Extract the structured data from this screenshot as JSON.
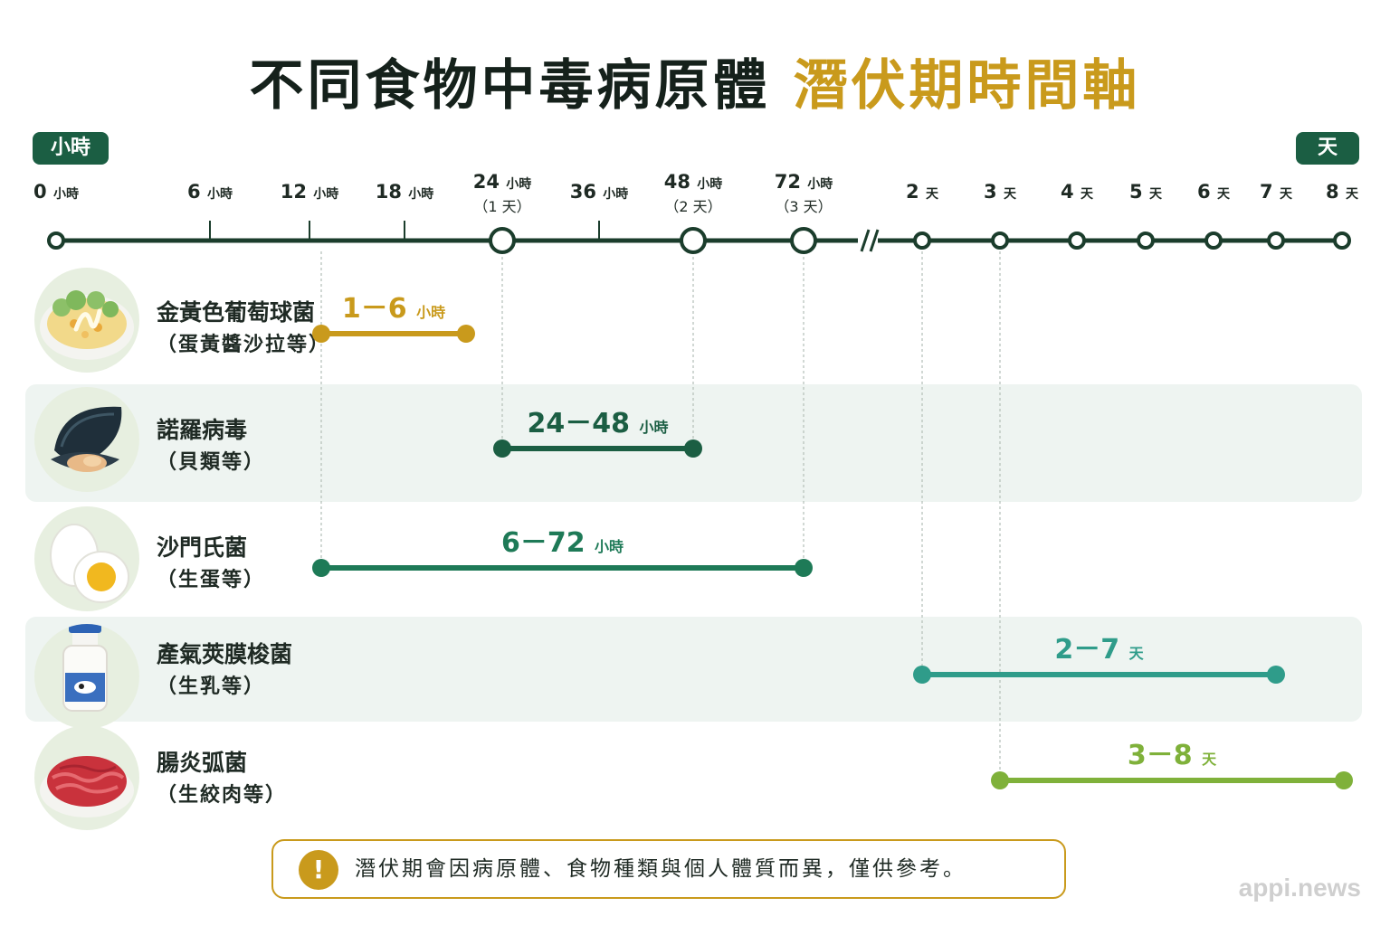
{
  "title": {
    "part1": "不同食物中毒病原體",
    "part2": "潛伏期時間軸"
  },
  "unit_tags": {
    "hours": "小時",
    "days": "天"
  },
  "axis": {
    "ticks": [
      {
        "num": "0",
        "unit": "小時"
      },
      {
        "num": "6",
        "unit": "小時"
      },
      {
        "num": "12",
        "unit": "小時"
      },
      {
        "num": "18",
        "unit": "小時"
      },
      {
        "num": "24",
        "unit": "小時",
        "sub": "（1 天）",
        "major": true
      },
      {
        "num": "36",
        "unit": "小時"
      },
      {
        "num": "48",
        "unit": "小時",
        "sub": "（2 天）",
        "major": true
      },
      {
        "num": "72",
        "unit": "小時",
        "sub": "（3 天）",
        "major": true
      },
      {
        "num": "2",
        "unit": "天",
        "node": true
      },
      {
        "num": "3",
        "unit": "天",
        "node": true
      },
      {
        "num": "4",
        "unit": "天",
        "node": true
      },
      {
        "num": "5",
        "unit": "天",
        "node": true
      },
      {
        "num": "6",
        "unit": "天",
        "node": true
      },
      {
        "num": "7",
        "unit": "天",
        "node": true
      },
      {
        "num": "8",
        "unit": "天",
        "node": true
      }
    ],
    "axis_color": "#1b3d2c"
  },
  "pathogens": [
    {
      "name": "金黃色葡萄球菌",
      "source": "（蛋黃醬沙拉等）",
      "range": "1－6",
      "unit": "小時",
      "start_tick": 1,
      "end_tick": 6,
      "color": "#c99a1c",
      "food_icon": "mayo-salad-icon"
    },
    {
      "name": "諾羅病毒",
      "source": "（貝類等）",
      "range": "24－48",
      "unit": "小時",
      "start_tick": 24,
      "end_tick": 48,
      "color": "#1b5e43",
      "food_icon": "mussel-icon"
    },
    {
      "name": "沙門氏菌",
      "source": "（生蛋等）",
      "range": "6－72",
      "unit": "小時",
      "start_tick": 6,
      "end_tick": 72,
      "color": "#1e7a57",
      "food_icon": "egg-icon"
    },
    {
      "name": "產氣莢膜梭菌",
      "source": "（生乳等）",
      "range": "2－7",
      "unit": "天",
      "start_tick": "2d",
      "end_tick": "7d",
      "color": "#2f9c8a",
      "food_icon": "milk-bottle-icon"
    },
    {
      "name": "腸炎弧菌",
      "source": "（生絞肉等）",
      "range": "3－8",
      "unit": "天",
      "start_tick": "3d",
      "end_tick": "8d",
      "color": "#7fb13a",
      "food_icon": "ground-meat-icon"
    }
  ],
  "note": "潛伏期會因病原體、食物種類與個人體質而異，僅供參考。",
  "watermark": "appi.news"
}
